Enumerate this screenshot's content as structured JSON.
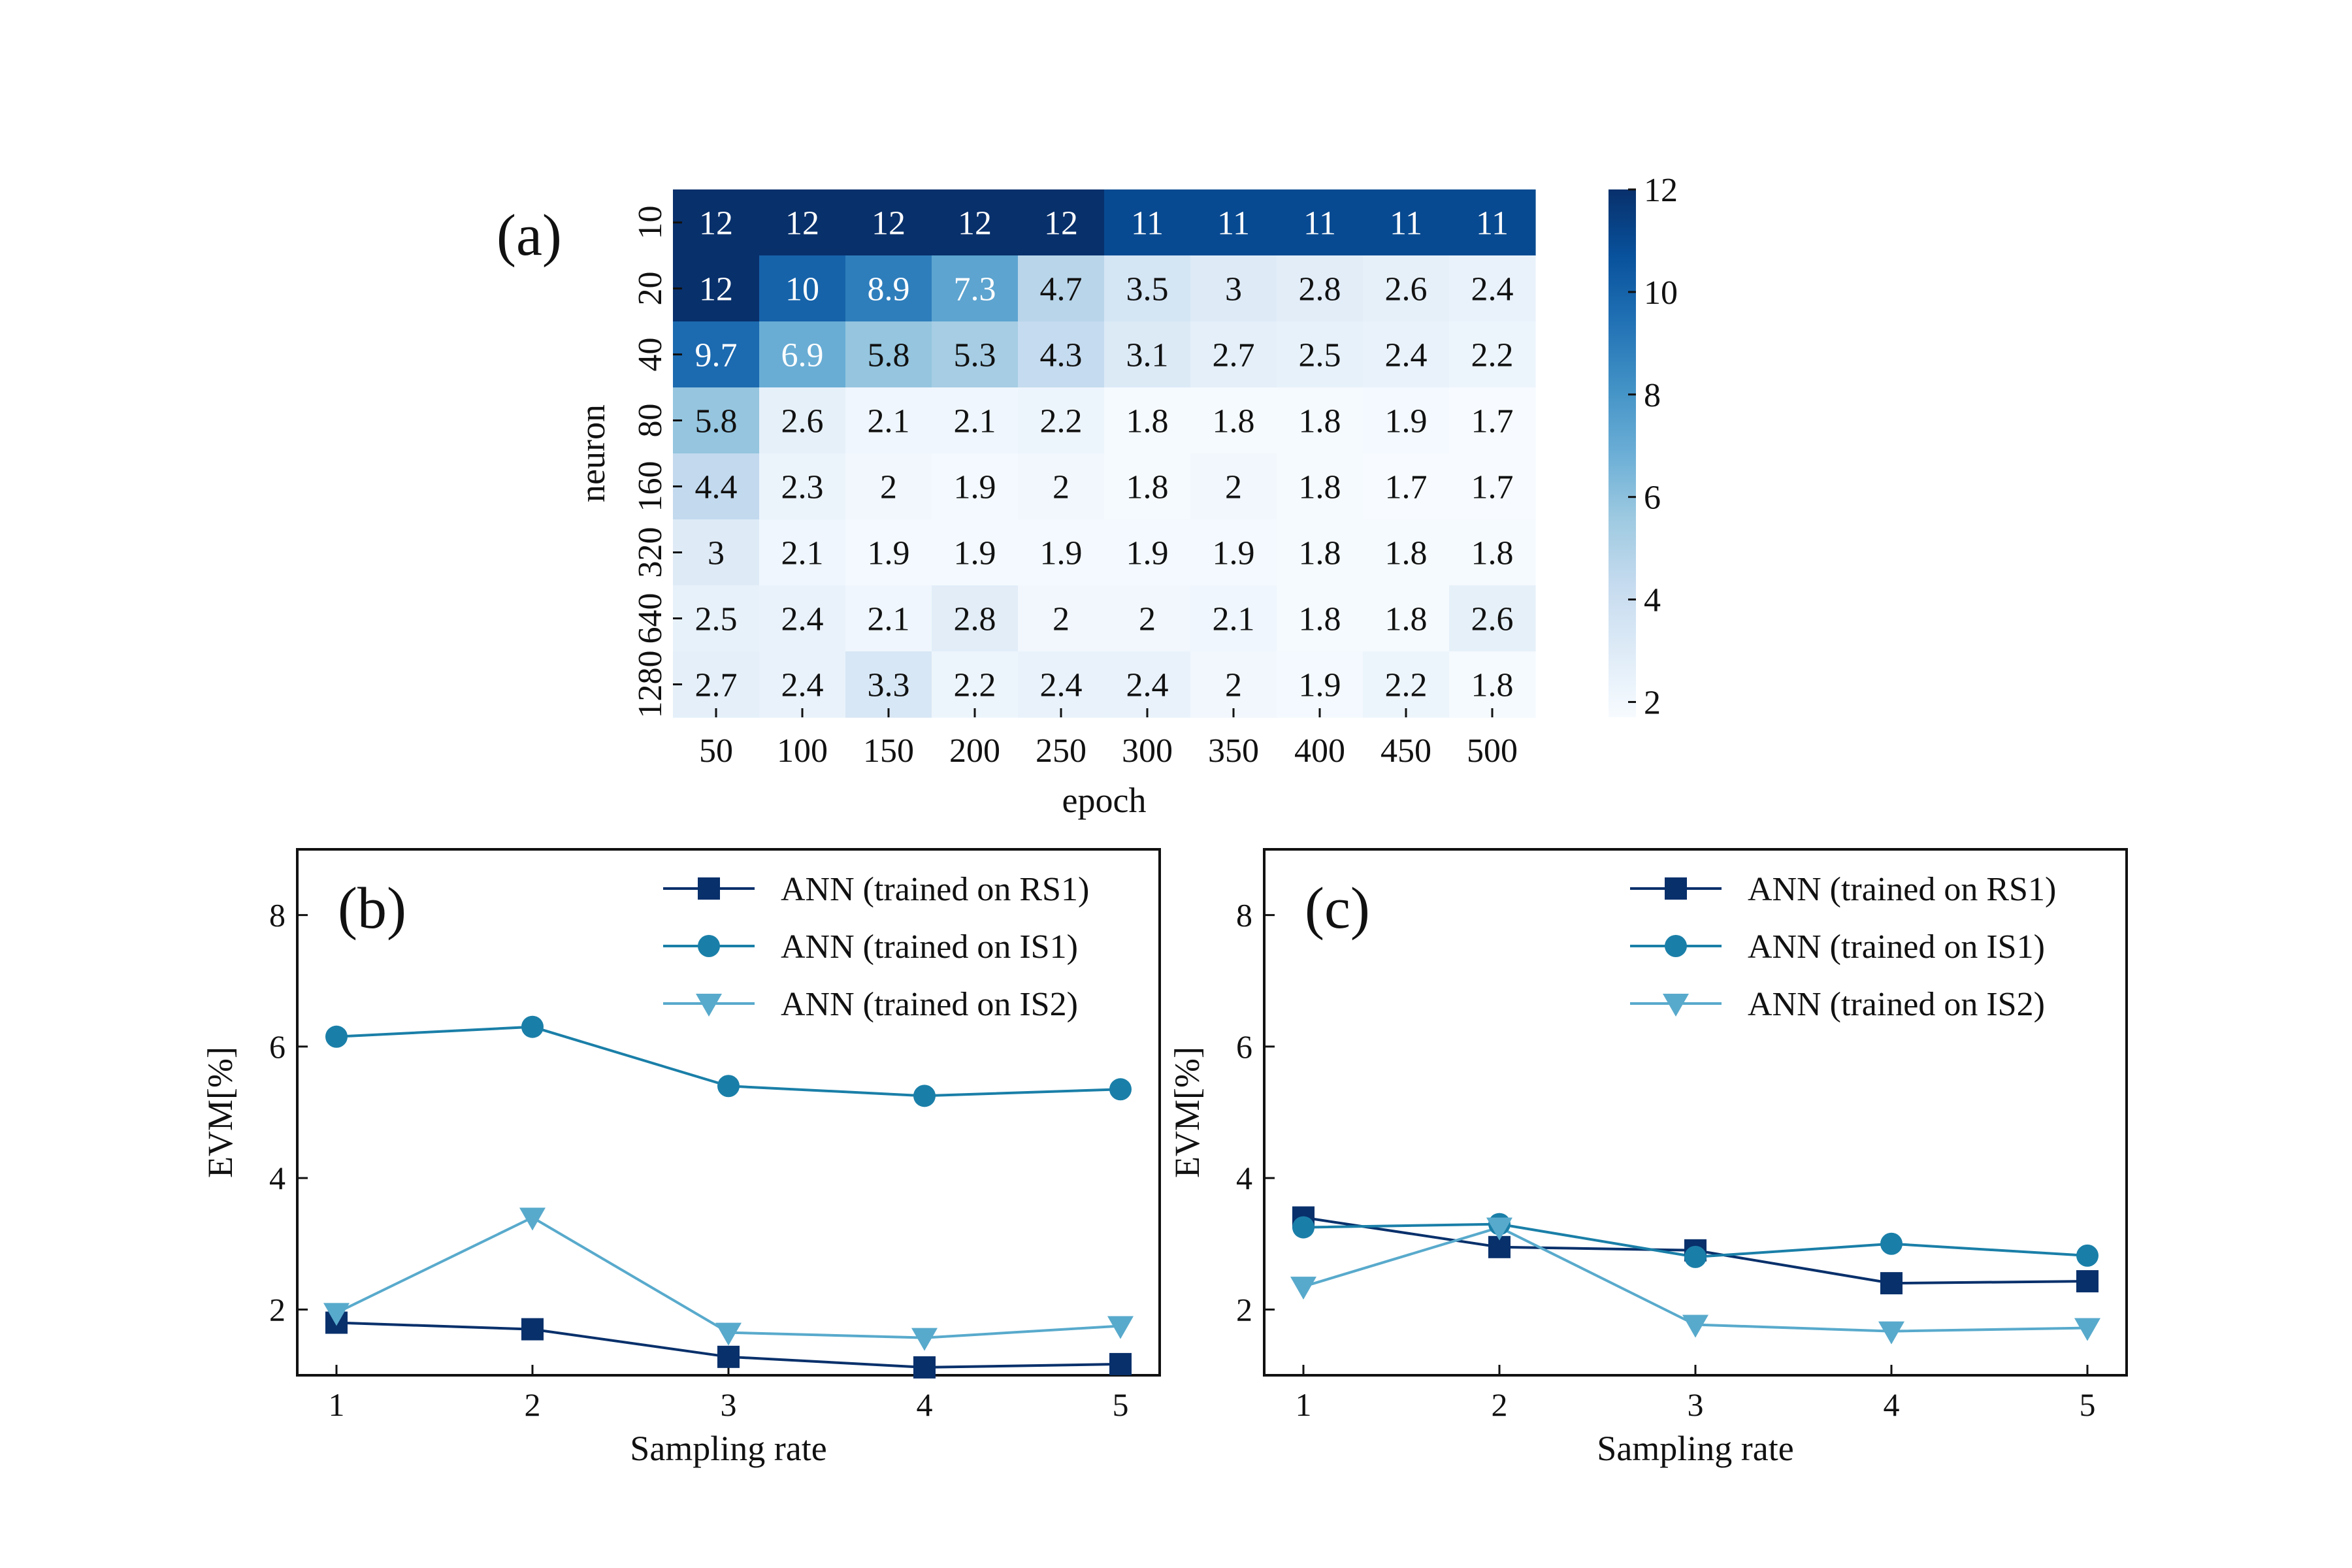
{
  "chart_data": [
    {
      "type": "heatmap",
      "panel_label": "(a)",
      "xlabel": "epoch",
      "ylabel": "neuron",
      "x": [
        "50",
        "100",
        "150",
        "200",
        "250",
        "300",
        "350",
        "400",
        "450",
        "500"
      ],
      "y": [
        "10",
        "20",
        "40",
        "80",
        "160",
        "320",
        "640",
        "1280"
      ],
      "values": [
        [
          12,
          12,
          12,
          12,
          12,
          11,
          11,
          11,
          11,
          11
        ],
        [
          12,
          10,
          8.9,
          7.3,
          4.7,
          3.5,
          3,
          2.8,
          2.6,
          2.4
        ],
        [
          9.7,
          6.9,
          5.8,
          5.3,
          4.3,
          3.1,
          2.7,
          2.5,
          2.4,
          2.2
        ],
        [
          5.8,
          2.6,
          2.1,
          2.1,
          2.2,
          1.8,
          1.8,
          1.8,
          1.9,
          1.7
        ],
        [
          4.4,
          2.3,
          2,
          1.9,
          2,
          1.8,
          2,
          1.8,
          1.7,
          1.7
        ],
        [
          3,
          2.1,
          1.9,
          1.9,
          1.9,
          1.9,
          1.9,
          1.8,
          1.8,
          1.8
        ],
        [
          2.5,
          2.4,
          2.1,
          2.8,
          2,
          2,
          2.1,
          1.8,
          1.8,
          2.6
        ],
        [
          2.7,
          2.4,
          3.3,
          2.2,
          2.4,
          2.4,
          2,
          1.9,
          2.2,
          1.8
        ]
      ],
      "colorbar": {
        "min": 1.7,
        "max": 12,
        "ticks": [
          "2",
          "4",
          "6",
          "8",
          "10",
          "12"
        ]
      },
      "colormap": [
        "#f7fbff",
        "#deebf7",
        "#c6dbef",
        "#9ecae1",
        "#6baed6",
        "#4292c6",
        "#2171b5",
        "#08519c",
        "#08306b"
      ]
    },
    {
      "type": "line",
      "panel_label": "(b)",
      "xlabel": "Sampling rate",
      "ylabel": "EVM[%]",
      "x": [
        1,
        2,
        3,
        4,
        5
      ],
      "xlim": [
        0.8,
        5.2
      ],
      "ylim": [
        1.0,
        9.0
      ],
      "xticks": [
        "1",
        "2",
        "3",
        "4",
        "5"
      ],
      "yticks": [
        "2",
        "4",
        "6",
        "8"
      ],
      "legend_position": "top-right",
      "series": [
        {
          "name": "ANN (trained on RS1)",
          "marker": "square",
          "color": "#08306b",
          "values": [
            1.8,
            1.7,
            1.28,
            1.12,
            1.17
          ]
        },
        {
          "name": "ANN (trained on IS1)",
          "marker": "circle",
          "color": "#1a7fa8",
          "values": [
            6.15,
            6.3,
            5.4,
            5.25,
            5.35
          ]
        },
        {
          "name": "ANN (trained on IS2)",
          "marker": "triangle-down",
          "color": "#58aacc",
          "values": [
            1.95,
            3.4,
            1.65,
            1.57,
            1.75
          ]
        }
      ]
    },
    {
      "type": "line",
      "panel_label": "(c)",
      "xlabel": "Sampling rate",
      "ylabel": "EVM[%]",
      "x": [
        1,
        2,
        3,
        4,
        5
      ],
      "xlim": [
        0.8,
        5.2
      ],
      "ylim": [
        1.0,
        9.0
      ],
      "xticks": [
        "1",
        "2",
        "3",
        "4",
        "5"
      ],
      "yticks": [
        "2",
        "4",
        "6",
        "8"
      ],
      "legend_position": "top-right",
      "series": [
        {
          "name": "ANN (trained on RS1)",
          "marker": "square",
          "color": "#08306b",
          "values": [
            3.4,
            2.95,
            2.9,
            2.4,
            2.43
          ]
        },
        {
          "name": "ANN (trained on IS1)",
          "marker": "circle",
          "color": "#1a7fa8",
          "values": [
            3.25,
            3.3,
            2.8,
            3.0,
            2.82
          ]
        },
        {
          "name": "ANN (trained on IS2)",
          "marker": "triangle-down",
          "color": "#58aacc",
          "values": [
            2.35,
            3.25,
            1.77,
            1.67,
            1.72
          ]
        }
      ]
    }
  ]
}
